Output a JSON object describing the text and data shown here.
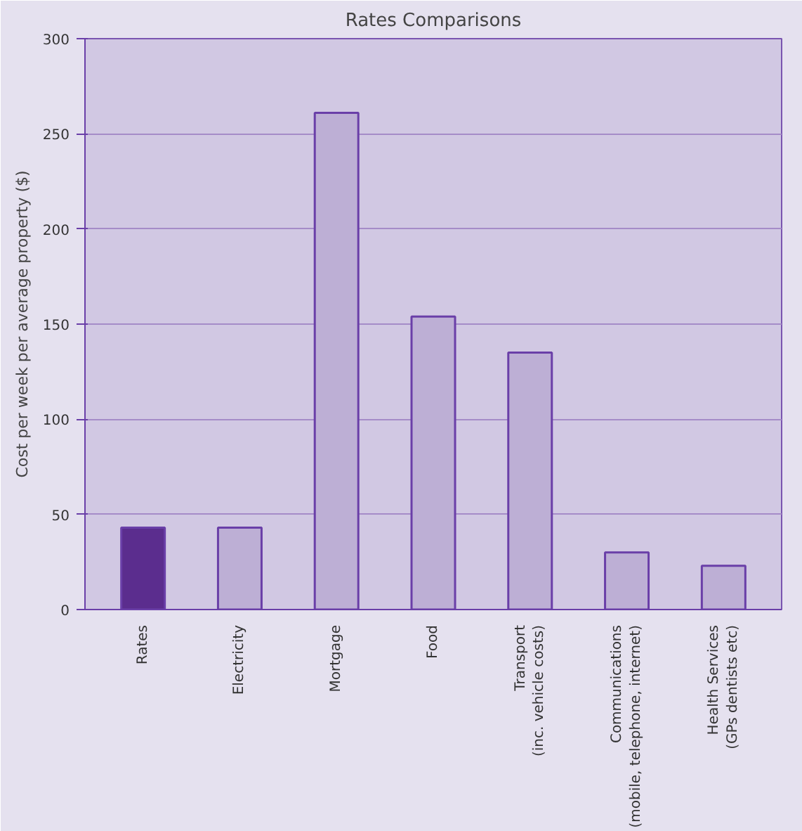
{
  "chart_data": {
    "type": "bar",
    "title": "Rates Comparisons",
    "ylabel": "Cost per week per average property ($)",
    "categories": [
      "Rates",
      "Electricity",
      "Mortgage",
      "Food",
      "Transport\n(inc. vehicle costs)",
      "Communications\n(mobile, telephone, internet)",
      "Health Services\n(GPs dentists etc)"
    ],
    "values": [
      43,
      43,
      261,
      154,
      135,
      30,
      23
    ],
    "colors": [
      "#5b2d8e",
      "#bdafd5",
      "#bdafd5",
      "#bdafd5",
      "#bdafd5",
      "#bdafd5",
      "#bdafd5"
    ],
    "ylim": [
      0,
      300
    ],
    "yticks": [
      0,
      50,
      100,
      150,
      200,
      250,
      300
    ],
    "grid": "y"
  }
}
